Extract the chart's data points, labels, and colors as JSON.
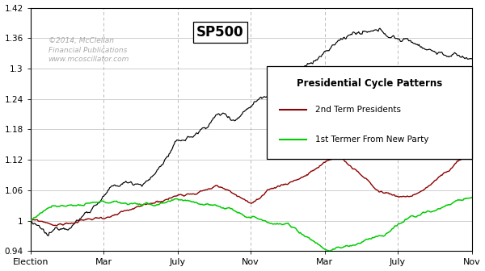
{
  "title": "SP500",
  "watermark_line1": "©2014, McClellan",
  "watermark_line2": "Financial Publications",
  "watermark_line3": "www.mcoscillator.com",
  "legend_title": "Presidential Cycle Patterns",
  "legend_line1": "2nd Term Presidents",
  "legend_line2": "1st Termer From New Party",
  "color_sp500": "#000000",
  "color_2nd_term": "#8B0000",
  "color_1st_term": "#00CC00",
  "ylim": [
    0.94,
    1.42
  ],
  "yticks": [
    0.94,
    1.0,
    1.06,
    1.12,
    1.18,
    1.24,
    1.3,
    1.36,
    1.42
  ],
  "xtick_labels": [
    "Election",
    "Mar",
    "July",
    "Nov",
    "Mar",
    "July",
    "Nov"
  ],
  "background_color": "#FFFFFF",
  "grid_color": "#BBBBBB",
  "border_color": "#000000",
  "n_points": 520
}
